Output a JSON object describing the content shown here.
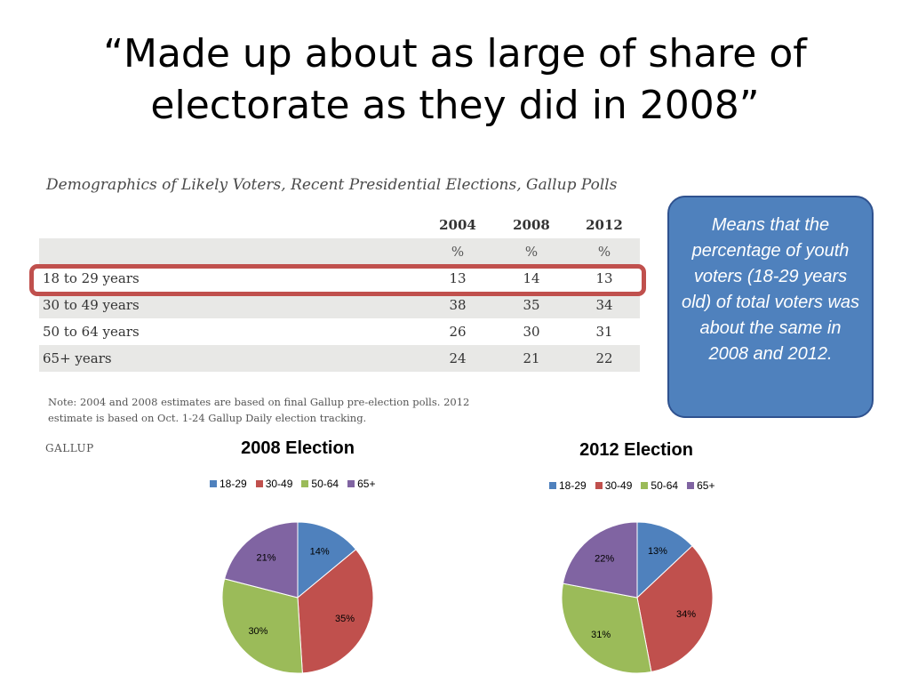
{
  "slide_title": "“Made up about as large of share of electorate as they did in 2008”",
  "table": {
    "title": "Demographics of Likely Voters, Recent Presidential Elections, Gallup Polls",
    "years": [
      "2004",
      "2008",
      "2012"
    ],
    "units": [
      "%",
      "%",
      "%"
    ],
    "rows": [
      {
        "label": "18 to 29 years",
        "values": [
          "13",
          "14",
          "13"
        ]
      },
      {
        "label": "30 to 49 years",
        "values": [
          "38",
          "35",
          "34"
        ]
      },
      {
        "label": "50 to 64 years",
        "values": [
          "26",
          "30",
          "31"
        ]
      },
      {
        "label": "65+ years",
        "values": [
          "24",
          "21",
          "22"
        ]
      }
    ],
    "note": "Note: 2004 and 2008 estimates are based on final Gallup pre-election polls. 2012 estimate is based on Oct. 1-24 Gallup Daily election tracking.",
    "source": "GALLUP"
  },
  "callout": "Means that the percentage of youth voters (18-29 years old) of total voters was about the same in 2008 and 2012.",
  "chart_data": [
    {
      "type": "pie",
      "title": "2008 Election",
      "categories": [
        "18-29",
        "30-49",
        "50-64",
        "65+"
      ],
      "values": [
        14,
        35,
        30,
        21
      ],
      "labels": [
        "14%",
        "35%",
        "30%",
        "21%"
      ],
      "colors": [
        "#4f81bd",
        "#c0504d",
        "#9bbb59",
        "#8064a2"
      ],
      "legend": "top"
    },
    {
      "type": "pie",
      "title": "2012 Election",
      "categories": [
        "18-29",
        "30-49",
        "50-64",
        "65+"
      ],
      "values": [
        13,
        34,
        31,
        22
      ],
      "labels": [
        "13%",
        "34%",
        "31%",
        "22%"
      ],
      "colors": [
        "#4f81bd",
        "#c0504d",
        "#9bbb59",
        "#8064a2"
      ],
      "legend": "top"
    }
  ]
}
